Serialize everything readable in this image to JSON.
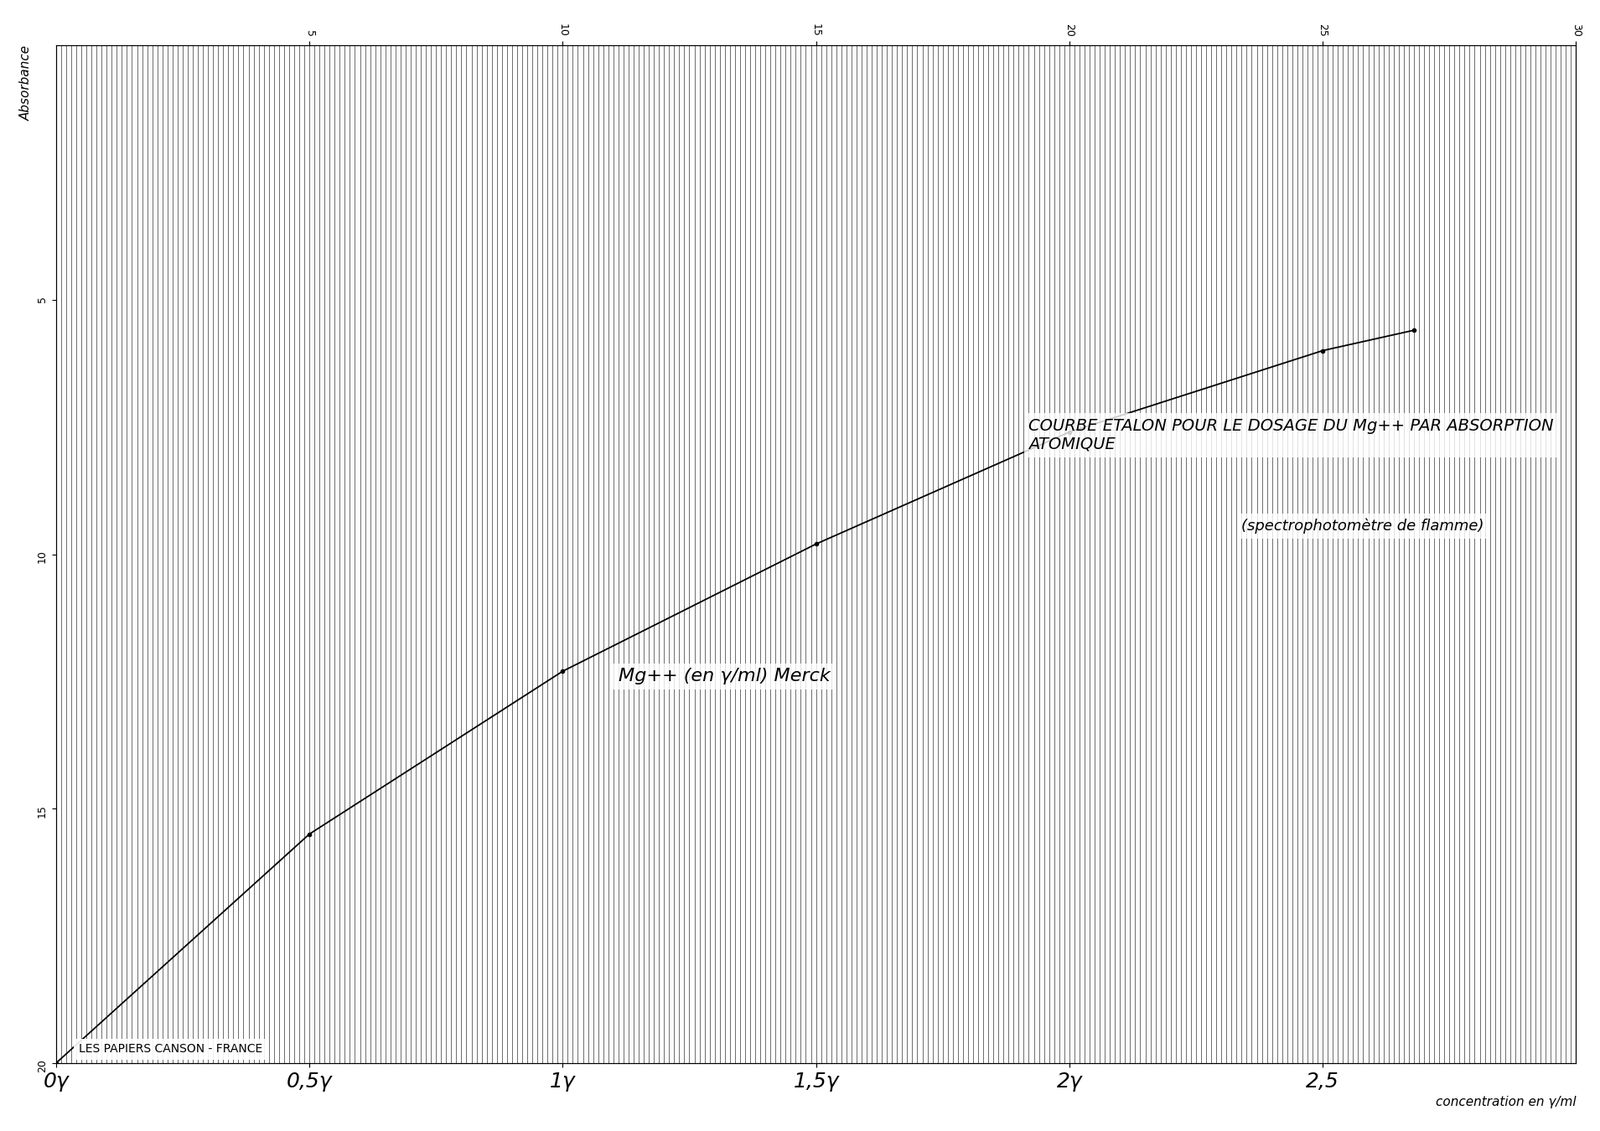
{
  "chart_data": {
    "type": "line",
    "title": "COURBE ETALON POUR LE DOSAGE DU Mg++ PAR ABSORPTION ATOMIQUE",
    "subtitle": "(spectrophotomètre de flamme)",
    "annotations": [
      "Mg++ (en γ/ml) Merck",
      "LES PAPIERS CANSON - FRANCE"
    ],
    "x_label": "concentration en γ/ml",
    "y_label": "Absorbance",
    "series": [
      {
        "name": "Mg++",
        "color": "#000000",
        "marker": "dot",
        "line_style": "solid",
        "x": [
          0,
          0.5,
          1.0,
          1.5,
          2.0,
          2.5,
          2.68
        ],
        "values": [
          20,
          15.5,
          12.3,
          9.8,
          7.6,
          6.0,
          5.6
        ]
      }
    ],
    "xlim": [
      0,
      3
    ],
    "xticks": [
      {
        "value": 0,
        "label": "0γ"
      },
      {
        "value": 0.5,
        "label": "0,5γ"
      },
      {
        "value": 1,
        "label": "1γ"
      },
      {
        "value": 1.5,
        "label": "1,5γ"
      },
      {
        "value": 2,
        "label": "2γ"
      },
      {
        "value": 2.5,
        "label": "2,5"
      }
    ],
    "x2ticks": [
      {
        "value": 0.5,
        "label": "5"
      },
      {
        "value": 1,
        "label": "10"
      },
      {
        "value": 1.5,
        "label": "15"
      },
      {
        "value": 2,
        "label": "20"
      },
      {
        "value": 2.5,
        "label": "25"
      },
      {
        "value": 3,
        "label": "30"
      }
    ],
    "ylim": [
      20,
      0
    ],
    "yticks": [
      5,
      10,
      15,
      20
    ],
    "grid": true
  }
}
